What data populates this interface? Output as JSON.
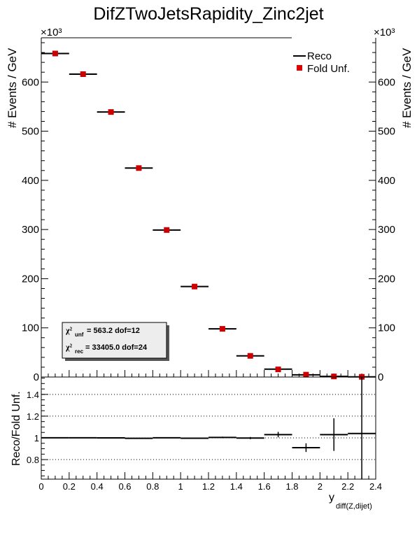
{
  "chart_data": [
    {
      "type": "scatter",
      "title": "DifZTwoJetsRapidity_Zinc2jet",
      "ylabel": "# Events / GeV",
      "y_exponent_label": "×10³",
      "ylim": [
        0,
        690000
      ],
      "xlim": [
        0,
        2.4
      ],
      "y_ticks": [
        0,
        100,
        200,
        300,
        400,
        500,
        600
      ],
      "legend": {
        "position": "top-right",
        "reco_label": "Reco",
        "fold_label": "Fold Unf."
      },
      "chi2": {
        "unf_label": "χ²",
        "unf_sub": "unf",
        "unf_text": "=    563.2  dof=12",
        "rec_label": "χ²",
        "rec_sub": "rec",
        "rec_text": "=  33405.0  dof=24"
      },
      "bin_edges": [
        0.0,
        0.2,
        0.4,
        0.6,
        0.8,
        1.0,
        1.2,
        1.4,
        1.6,
        1.8,
        2.0,
        2.2,
        2.4
      ],
      "series": [
        {
          "name": "Reco",
          "style": "black horizontal bin lines",
          "values": [
            658000,
            616000,
            539000,
            425000,
            299000,
            184000,
            98000,
            43000,
            16000,
            4500,
            1200,
            400
          ]
        },
        {
          "name": "Fold Unf.",
          "style": "red square markers",
          "color": "#cc0000",
          "values": [
            658000,
            616000,
            539000,
            425000,
            299000,
            184000,
            98000,
            43000,
            15500,
            4800,
            1170,
            380
          ]
        }
      ]
    },
    {
      "type": "scatter",
      "ylabel": "Reco/Fold Unf.",
      "xlabel": "y",
      "xlabel_sub": "diff(Z,dijet)",
      "ylim": [
        0.62,
        1.56
      ],
      "xlim": [
        0,
        2.4
      ],
      "y_ticks": [
        "0.8",
        "1",
        "1.2",
        "1.4"
      ],
      "x_ticks": [
        "0",
        "0.2",
        "0.4",
        "0.6",
        "0.8",
        "1",
        "1.2",
        "1.4",
        "1.6",
        "1.8",
        "2",
        "2.2",
        "2.4"
      ],
      "grid": "horizontal dotted",
      "bin_edges": [
        0.0,
        0.2,
        0.4,
        0.6,
        0.8,
        1.0,
        1.2,
        1.4,
        1.6,
        1.8,
        2.0,
        2.2,
        2.4
      ],
      "series": [
        {
          "name": "",
          "values": [
            1.001,
            1.001,
            1.0,
            0.996,
            1.001,
            0.997,
            1.004,
            0.998,
            1.03,
            0.91,
            1.03,
            1.04
          ],
          "errors": [
            0.002,
            0.003,
            0.003,
            0.004,
            0.004,
            0.005,
            0.007,
            0.01,
            0.025,
            0.04,
            0.15,
            0.7
          ]
        }
      ]
    }
  ]
}
